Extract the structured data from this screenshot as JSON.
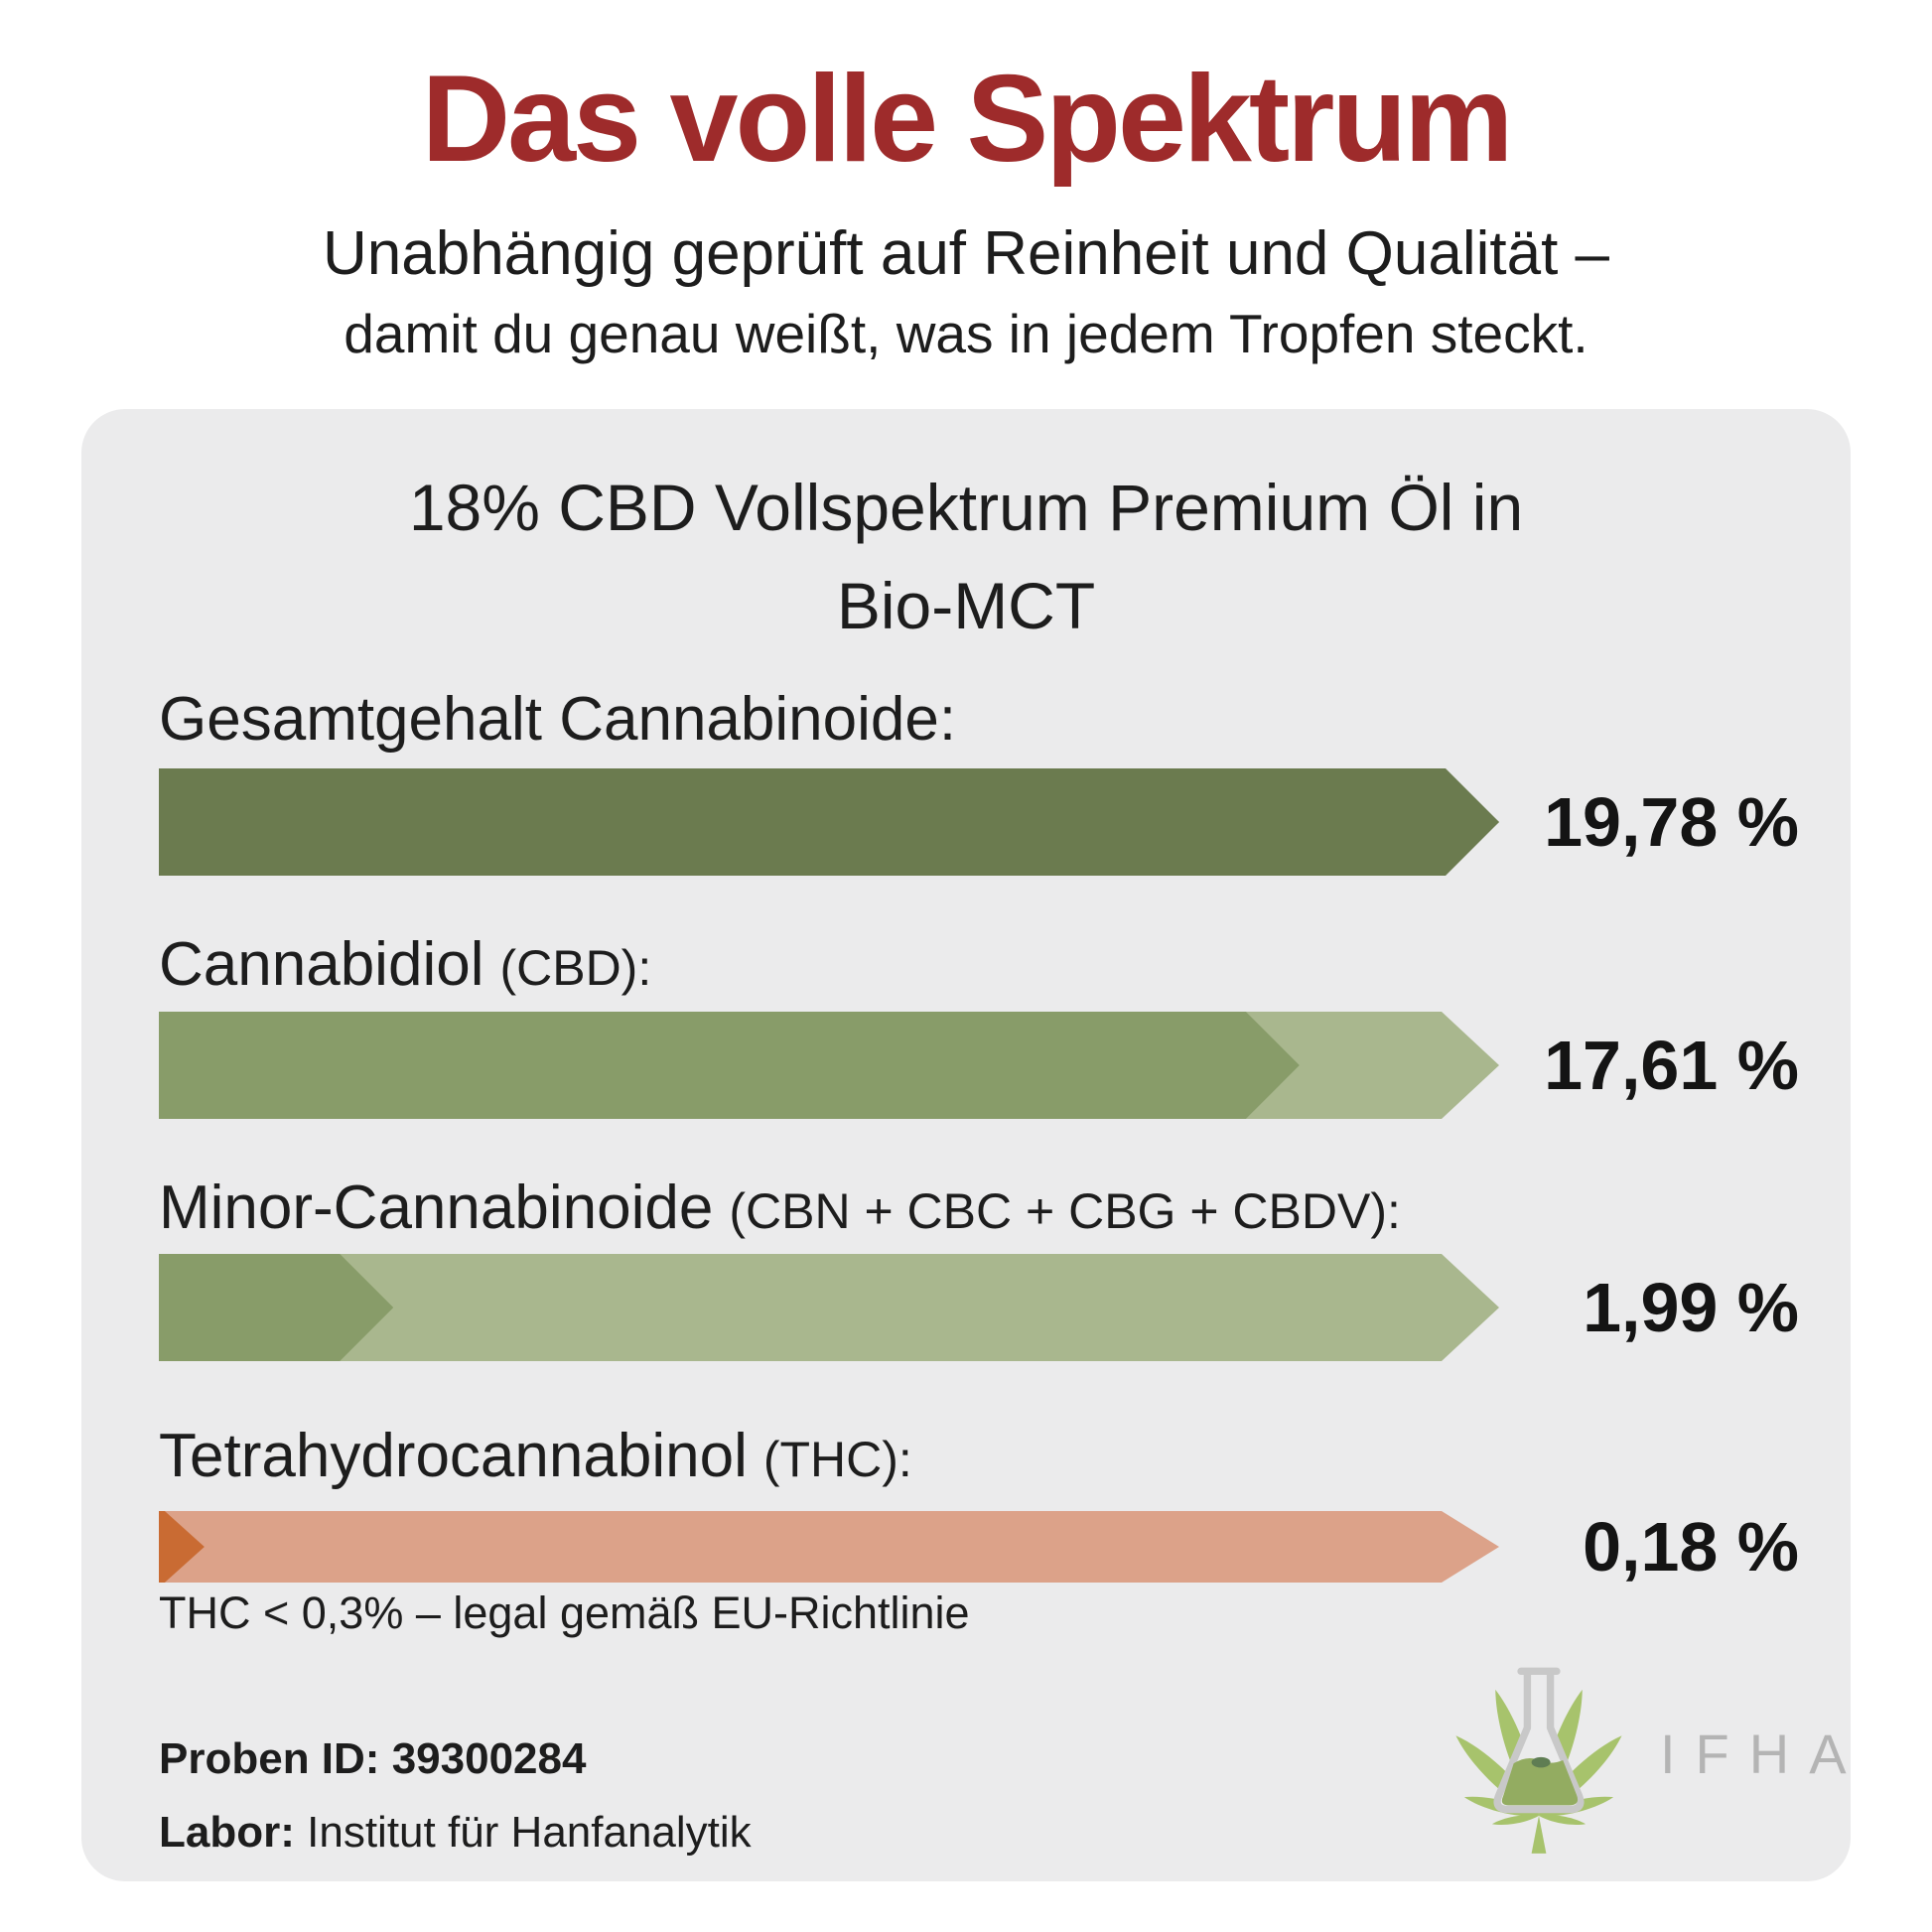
{
  "header": {
    "title": "Das volle Spektrum",
    "subtitle_line1": "Unabhängig geprüft auf Reinheit und Qualität –",
    "subtitle_line2": "damit du genau weißt, was in jedem Tropfen steckt."
  },
  "card": {
    "title_lines": [
      "18% CBD Vollspektrum Premium Öl in",
      "Bio-MCT"
    ],
    "bars": [
      {
        "label": "Gesamtgehalt Cannabinoide:",
        "sublabel": "",
        "value_label": "19,78 %",
        "value": 19.78,
        "fill_percent": 100,
        "fill_color": "#6b7b4f",
        "track_color": "#6b7b4f"
      },
      {
        "label": "Cannabidiol",
        "sublabel": "(CBD):",
        "value_label": "17,61 %",
        "value": 17.61,
        "fill_percent": 85.1,
        "fill_color": "#889c69",
        "track_color": "#a9b78e"
      },
      {
        "label": "Minor-Cannabinoide",
        "sublabel": "(CBN + CBC + CBG + CBDV):",
        "value_label": "1,99 %",
        "value": 1.99,
        "fill_percent": 17.5,
        "fill_color": "#889c69",
        "track_color": "#a9b78e"
      },
      {
        "label": "Tetrahydrocannabinol",
        "sublabel": "(THC):",
        "value_label": "0,18 %",
        "value": 0.18,
        "fill_percent": 3.4,
        "fill_color": "#c96b33",
        "track_color": "#dca289"
      }
    ],
    "thc_note": "THC < 0,3% – legal gemäß EU-Richtlinie",
    "footer": {
      "proben_label": "Proben ID:",
      "proben_value": "39300284",
      "labor_label": "Labor:",
      "labor_value": "Institut für Hanfanalytik"
    },
    "logo": {
      "text": "IFHA"
    }
  },
  "colors": {
    "title_red": "#9e2b2b",
    "card_bg": "#ebebec",
    "text": "#1d1d1d",
    "logo_leaf": "#a7c36c",
    "logo_flask": "#c8c8c8",
    "logo_liquid": "#93ac61",
    "logo_text": "#b4b4b4"
  },
  "chart_data": {
    "type": "bar",
    "orientation": "horizontal",
    "title": "18% CBD Vollspektrum Premium Öl in Bio-MCT",
    "categories": [
      "Gesamtgehalt Cannabinoide",
      "Cannabidiol (CBD)",
      "Minor-Cannabinoide (CBN + CBC + CBG + CBDV)",
      "Tetrahydrocannabinol (THC)"
    ],
    "values": [
      19.78,
      17.61,
      1.99,
      0.18
    ],
    "unit": "%",
    "value_labels": [
      "19,78 %",
      "17,61 %",
      "1,99 %",
      "0,18 %"
    ],
    "xlim": [
      0,
      19.78
    ],
    "annotations": [
      "THC < 0,3% – legal gemäß EU-Richtlinie"
    ],
    "legend": "none",
    "grid": false
  }
}
